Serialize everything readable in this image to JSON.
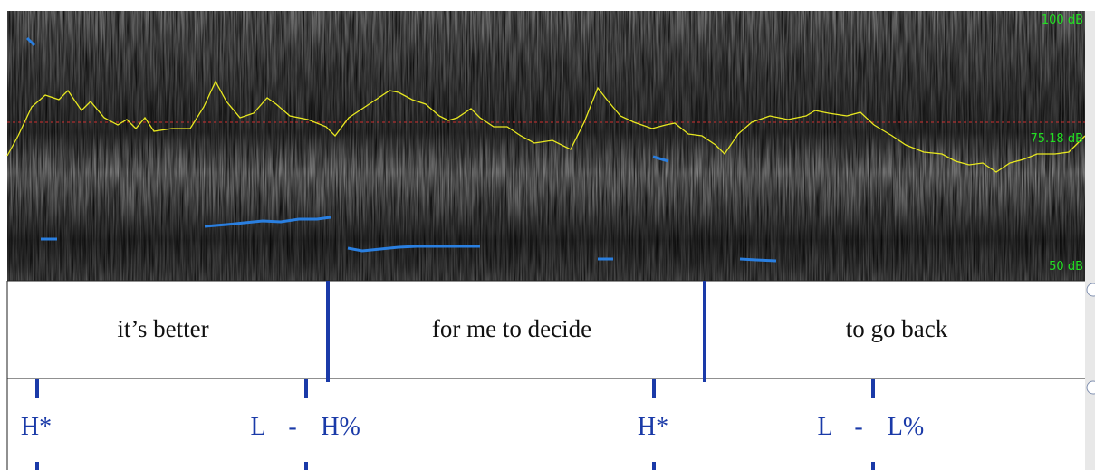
{
  "spectrogram": {
    "scale_labels": [
      "100 dB",
      "75.18 dB",
      "50 dB"
    ]
  },
  "tiers": [
    {
      "intervals": [
        "it’s better",
        "for me to decide",
        "to go back"
      ]
    },
    {
      "points": [
        "H*",
        "L",
        "-",
        "H%",
        "H*",
        "L",
        "-",
        "L%"
      ]
    }
  ]
}
